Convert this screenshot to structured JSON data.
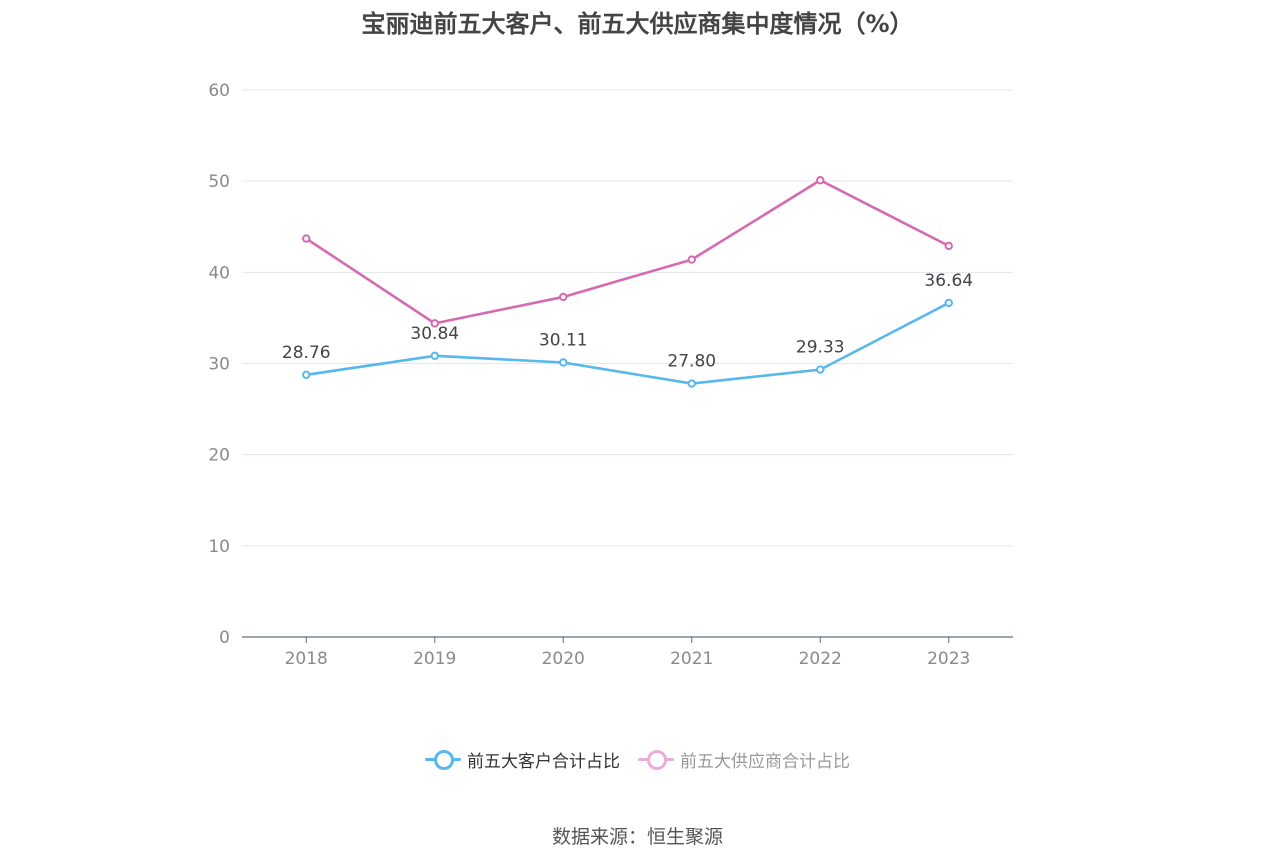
{
  "title": "宝丽迪前五大客户、前五大供应商集中度情况（%）",
  "source": "数据来源：恒生聚源",
  "colors": {
    "customers": "#56b8ec",
    "suppliers": "#d46bb0",
    "suppliers_legend": "#eaaed6",
    "grid": "#e3e6ee",
    "axis": "#666a80",
    "tick_label": "#8a8a8a",
    "data_label": "#444444"
  },
  "legend": {
    "customers_label": "前五大客户合计占比",
    "suppliers_label": "前五大供应商合计占比"
  },
  "chart_data": {
    "type": "line",
    "categories": [
      "2018",
      "2019",
      "2020",
      "2021",
      "2022",
      "2023"
    ],
    "ylim": [
      0,
      60
    ],
    "yticks": [
      0,
      10,
      20,
      30,
      40,
      50,
      60
    ],
    "grid": true,
    "legend_position": "bottom",
    "series": [
      {
        "name": "前五大客户合计占比",
        "values": [
          28.76,
          30.84,
          30.11,
          27.8,
          29.33,
          36.64
        ],
        "data_labels": [
          "28.76",
          "30.84",
          "30.11",
          "27.80",
          "29.33",
          "36.64"
        ]
      },
      {
        "name": "前五大供应商合计占比",
        "values": [
          43.7,
          34.4,
          37.3,
          41.4,
          50.1,
          42.9
        ],
        "data_labels": []
      }
    ]
  }
}
